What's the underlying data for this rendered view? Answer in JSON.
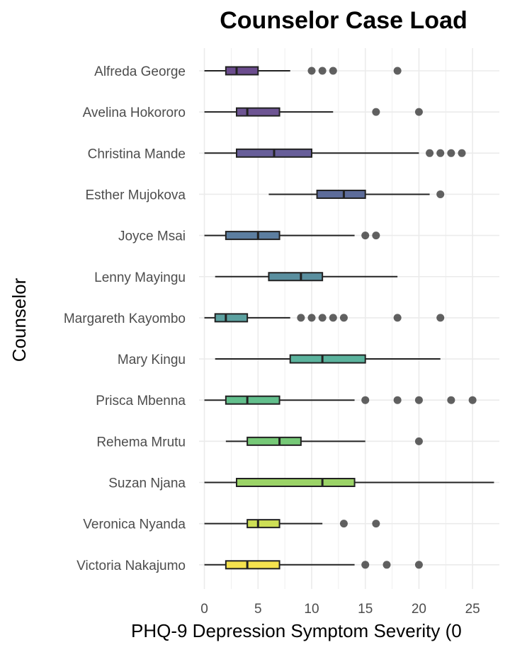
{
  "chart_data": {
    "type": "boxplot",
    "title": "Counselor Case Load",
    "xlabel": "PHQ-9 Depression Symptom Severity (0",
    "ylabel": "Counselor",
    "xlim": [
      -0.5,
      27.5
    ],
    "xticks": [
      0,
      5,
      10,
      15,
      20,
      25
    ],
    "grid": true,
    "legend": "none",
    "colors": {
      "grid": "#ebebeb",
      "box_stroke": "#222222",
      "outlier": "#3a3a3a"
    },
    "categories": [
      {
        "label": "Alfreda George",
        "min": 0,
        "q1": 2,
        "median": 3,
        "q3": 5,
        "max": 8,
        "outliers": [
          10,
          11,
          12,
          18
        ],
        "color": "#6b4c8e"
      },
      {
        "label": "Avelina Hokororo",
        "min": 0,
        "q1": 3,
        "median": 4,
        "q3": 7,
        "max": 12,
        "outliers": [
          16,
          20
        ],
        "color": "#6e5593"
      },
      {
        "label": "Christina Mande",
        "min": 0,
        "q1": 3,
        "median": 6.5,
        "q3": 10,
        "max": 20,
        "outliers": [
          21,
          22,
          23,
          24
        ],
        "color": "#675e99"
      },
      {
        "label": "Esther Mujokova",
        "min": 6,
        "q1": 10.5,
        "median": 13,
        "q3": 15,
        "max": 21,
        "outliers": [
          22
        ],
        "color": "#5d6c9a"
      },
      {
        "label": "Joyce Msai",
        "min": 0,
        "q1": 2,
        "median": 5,
        "q3": 7,
        "max": 14,
        "outliers": [
          15,
          16
        ],
        "color": "#5c7ea0"
      },
      {
        "label": "Lenny Mayingu",
        "min": 1,
        "q1": 6,
        "median": 9,
        "q3": 11,
        "max": 18,
        "outliers": [],
        "color": "#5a8f9f"
      },
      {
        "label": "Margareth Kayombo",
        "min": 0,
        "q1": 1,
        "median": 2,
        "q3": 4,
        "max": 8,
        "outliers": [
          9,
          10,
          11,
          12,
          13,
          18,
          22
        ],
        "color": "#5ca1a0"
      },
      {
        "label": "Mary Kingu",
        "min": 1,
        "q1": 8,
        "median": 11,
        "q3": 15,
        "max": 22,
        "outliers": [],
        "color": "#5bb39d"
      },
      {
        "label": "Prisca Mbenna",
        "min": 0,
        "q1": 2,
        "median": 4,
        "q3": 7,
        "max": 14,
        "outliers": [
          15,
          18,
          20,
          23,
          25
        ],
        "color": "#62bf8c"
      },
      {
        "label": "Rehema Mrutu",
        "min": 2,
        "q1": 4,
        "median": 7,
        "q3": 9,
        "max": 15,
        "outliers": [
          20
        ],
        "color": "#76c977"
      },
      {
        "label": "Suzan Njana",
        "min": 0,
        "q1": 3,
        "median": 11,
        "q3": 14,
        "max": 27,
        "outliers": [],
        "color": "#9bd367"
      },
      {
        "label": "Veronica Nyanda",
        "min": 0,
        "q1": 4,
        "median": 5,
        "q3": 7,
        "max": 11,
        "outliers": [
          13,
          16
        ],
        "color": "#cddf55"
      },
      {
        "label": "Victoria Nakajumo",
        "min": 0,
        "q1": 2,
        "median": 4,
        "q3": 7,
        "max": 14,
        "outliers": [
          15,
          17,
          20
        ],
        "color": "#f5e24e"
      }
    ]
  }
}
